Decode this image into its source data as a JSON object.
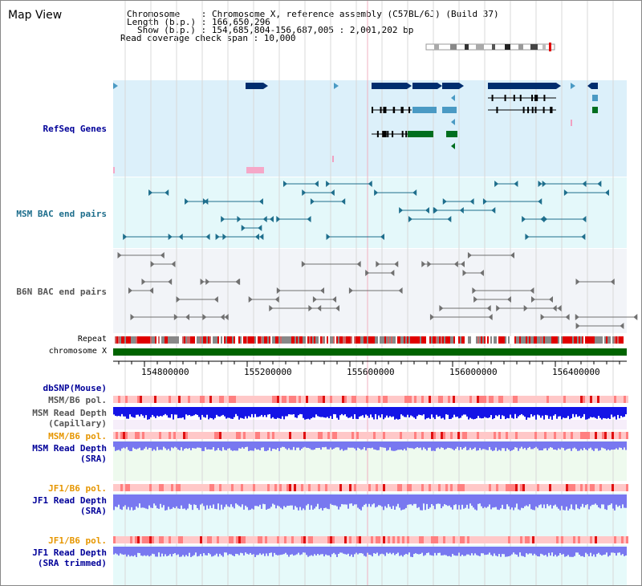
{
  "page": {
    "title": "Map View"
  },
  "info": {
    "chromosome_line": "Chromosome    : Chromosome X, reference assembly (C57BL/6J) (Build 37)",
    "length_line": "Length (b.p.) : 166,650,296",
    "show_line": "Show (b.p.) : 154,685,804-156,687,005 : 2,001,202 bp",
    "coverage_line": "Read coverage check span : 10,000"
  },
  "tracks": {
    "refseq": "RefSeq Genes",
    "msm_bac": "MSM BAC end pairs",
    "b6n_bac": "B6N BAC end pairs",
    "repeat": "Repeat",
    "chromosome": "chromosome X",
    "dbsnp": "dbSNP(Mouse)",
    "msm_pol": "MSM/B6 pol.",
    "msm_depth_cap": "MSM Read Depth",
    "msm_depth_cap_sub": "(Capillary)",
    "msm_pol2": "MSM/B6 pol.",
    "msm_depth_sra": "MSM Read Depth",
    "msm_depth_sra_sub": "(SRA)",
    "jf1_pol": "JF1/B6 pol.",
    "jf1_depth_sra": "JF1 Read Depth",
    "jf1_depth_sra_sub": "(SRA)",
    "jf1_pol2": "JF1/B6 pol.",
    "jf1_depth_trim": "JF1 Read Depth",
    "jf1_depth_trim_sub": "(SRA trimmed)"
  },
  "axis": {
    "ticks": [
      "154800000",
      "155200000",
      "155600000",
      "156000000",
      "156400000"
    ],
    "range": [
      154685804,
      156687005
    ]
  },
  "colors": {
    "refseq_bg": "#dcf0fa",
    "msm_bg": "#e4f8fa",
    "b6n_bg": "#f2f4f8",
    "chromosome": "#006400",
    "gene_dark": "#002d6e",
    "gene_mid": "#4a9ac4",
    "gene_green": "#006e1e",
    "bac_msm": "#1e6e8c",
    "bac_b6n": "#707070",
    "depth_blue": "#1414e6",
    "depth_light": "#7878f0",
    "pol_red": "#ff6464",
    "label_blue": "#000099",
    "label_teal": "#1e6e8c",
    "label_orange": "#e69600"
  }
}
